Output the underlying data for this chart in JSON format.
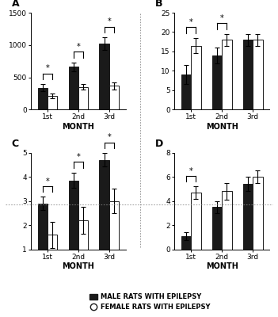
{
  "panels": [
    "A",
    "B",
    "C",
    "D"
  ],
  "months": [
    "1st",
    "2nd",
    "3rd"
  ],
  "A": {
    "male_means": [
      340,
      660,
      1020
    ],
    "male_errs": [
      55,
      70,
      100
    ],
    "female_means": [
      215,
      350,
      370
    ],
    "female_errs": [
      35,
      45,
      55
    ],
    "ylim": [
      0,
      1500
    ],
    "yticks": [
      0,
      500,
      1000,
      1500
    ],
    "sig": [
      0,
      1,
      2
    ]
  },
  "B": {
    "male_means": [
      9,
      14,
      18
    ],
    "male_errs": [
      2.5,
      2,
      1.5
    ],
    "female_means": [
      16.5,
      18,
      18
    ],
    "female_errs": [
      2,
      1.5,
      1.5
    ],
    "ylim": [
      0,
      25
    ],
    "yticks": [
      0,
      5,
      10,
      15,
      20,
      25
    ],
    "sig": [
      0,
      1
    ]
  },
  "C": {
    "male_means": [
      2.9,
      3.85,
      4.7
    ],
    "male_errs": [
      0.28,
      0.32,
      0.28
    ],
    "female_means": [
      1.6,
      2.2,
      3.0
    ],
    "female_errs": [
      0.55,
      0.55,
      0.5
    ],
    "ylim": [
      1,
      5
    ],
    "yticks": [
      1,
      2,
      3,
      4,
      5
    ],
    "sig": [
      0,
      1,
      2
    ]
  },
  "D": {
    "male_means": [
      1.1,
      3.5,
      5.4
    ],
    "male_errs": [
      0.3,
      0.5,
      0.6
    ],
    "female_means": [
      4.7,
      4.8,
      6.0
    ],
    "female_errs": [
      0.5,
      0.7,
      0.5
    ],
    "ylim": [
      0,
      8
    ],
    "yticks": [
      0,
      2,
      4,
      6,
      8
    ],
    "sig": [
      0
    ]
  },
  "bar_width": 0.32,
  "male_color": "#1a1a1a",
  "female_color": "#ffffff",
  "female_edge": "#1a1a1a",
  "xlabel": "MONTH",
  "legend_male": "MALE RATS WITH EPILEPSY",
  "legend_female": "FEMALE RATS WITH EPILEPSY",
  "bg_color": "#ffffff",
  "sig_star": "*"
}
